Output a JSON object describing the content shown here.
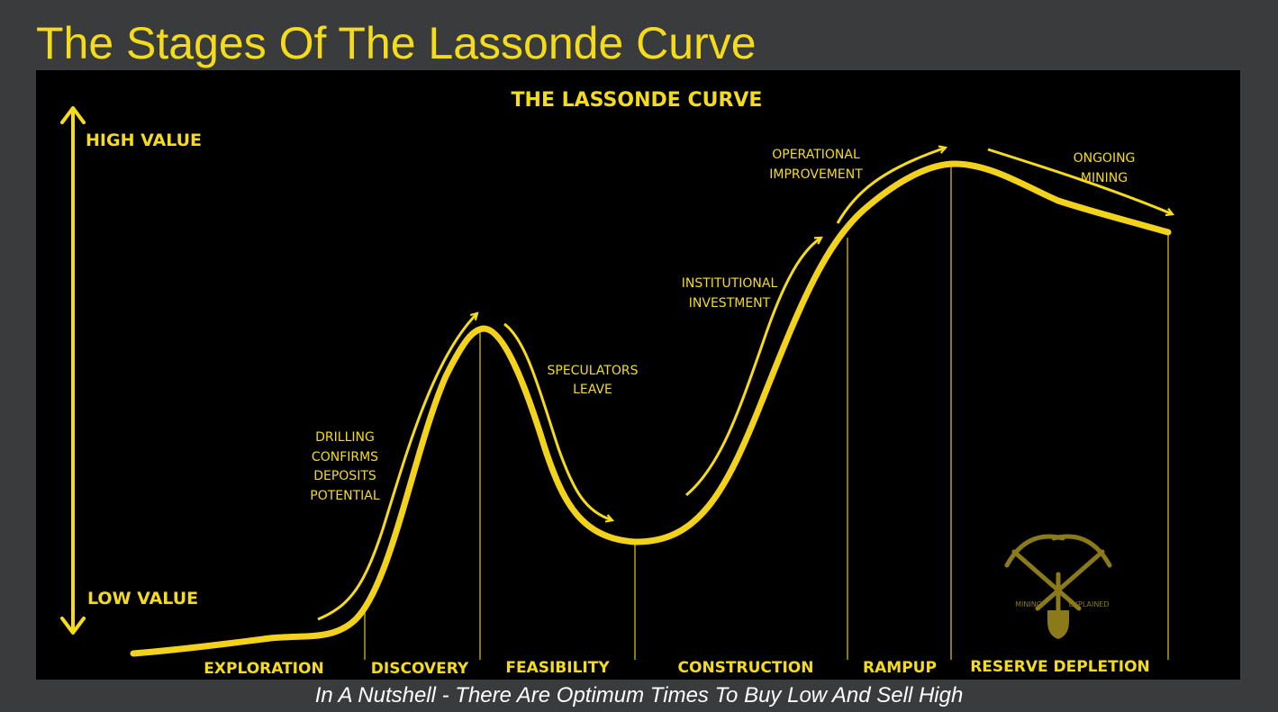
{
  "slide": {
    "title": "The Stages Of The Lassonde Curve",
    "caption": "In A Nutshell - There Are Optimum Times To Buy Low And Sell High"
  },
  "diagram": {
    "title": "THE LASSONDE CURVE",
    "axis": {
      "high": "HIGH VALUE",
      "low": "LOW VALUE"
    },
    "stages": [
      "EXPLORATION",
      "DISCOVERY",
      "FEASIBILITY",
      "CONSTRUCTION",
      "RAMPUP",
      "RESERVE DEPLETION"
    ],
    "annotations": {
      "drilling": [
        "DRILLING",
        "CONFIRMS",
        "DEPOSITS",
        "POTENTIAL"
      ],
      "speculators": [
        "SPECULATORS",
        "LEAVE"
      ],
      "institutional": [
        "INSTITUTIONAL",
        "INVESTMENT"
      ],
      "operational": [
        "OPERATIONAL",
        "IMPROVEMENT"
      ],
      "ongoing": [
        "ONGOING",
        "MINING"
      ]
    },
    "logo": {
      "left_text": "MINING",
      "right_text": "EXPLAINED"
    },
    "colors": {
      "accent": "#f5dc1a",
      "curve": "#f3d21b",
      "panel": "#000000",
      "background": "#3a3b3c",
      "logo": "#8a7a1a"
    }
  }
}
